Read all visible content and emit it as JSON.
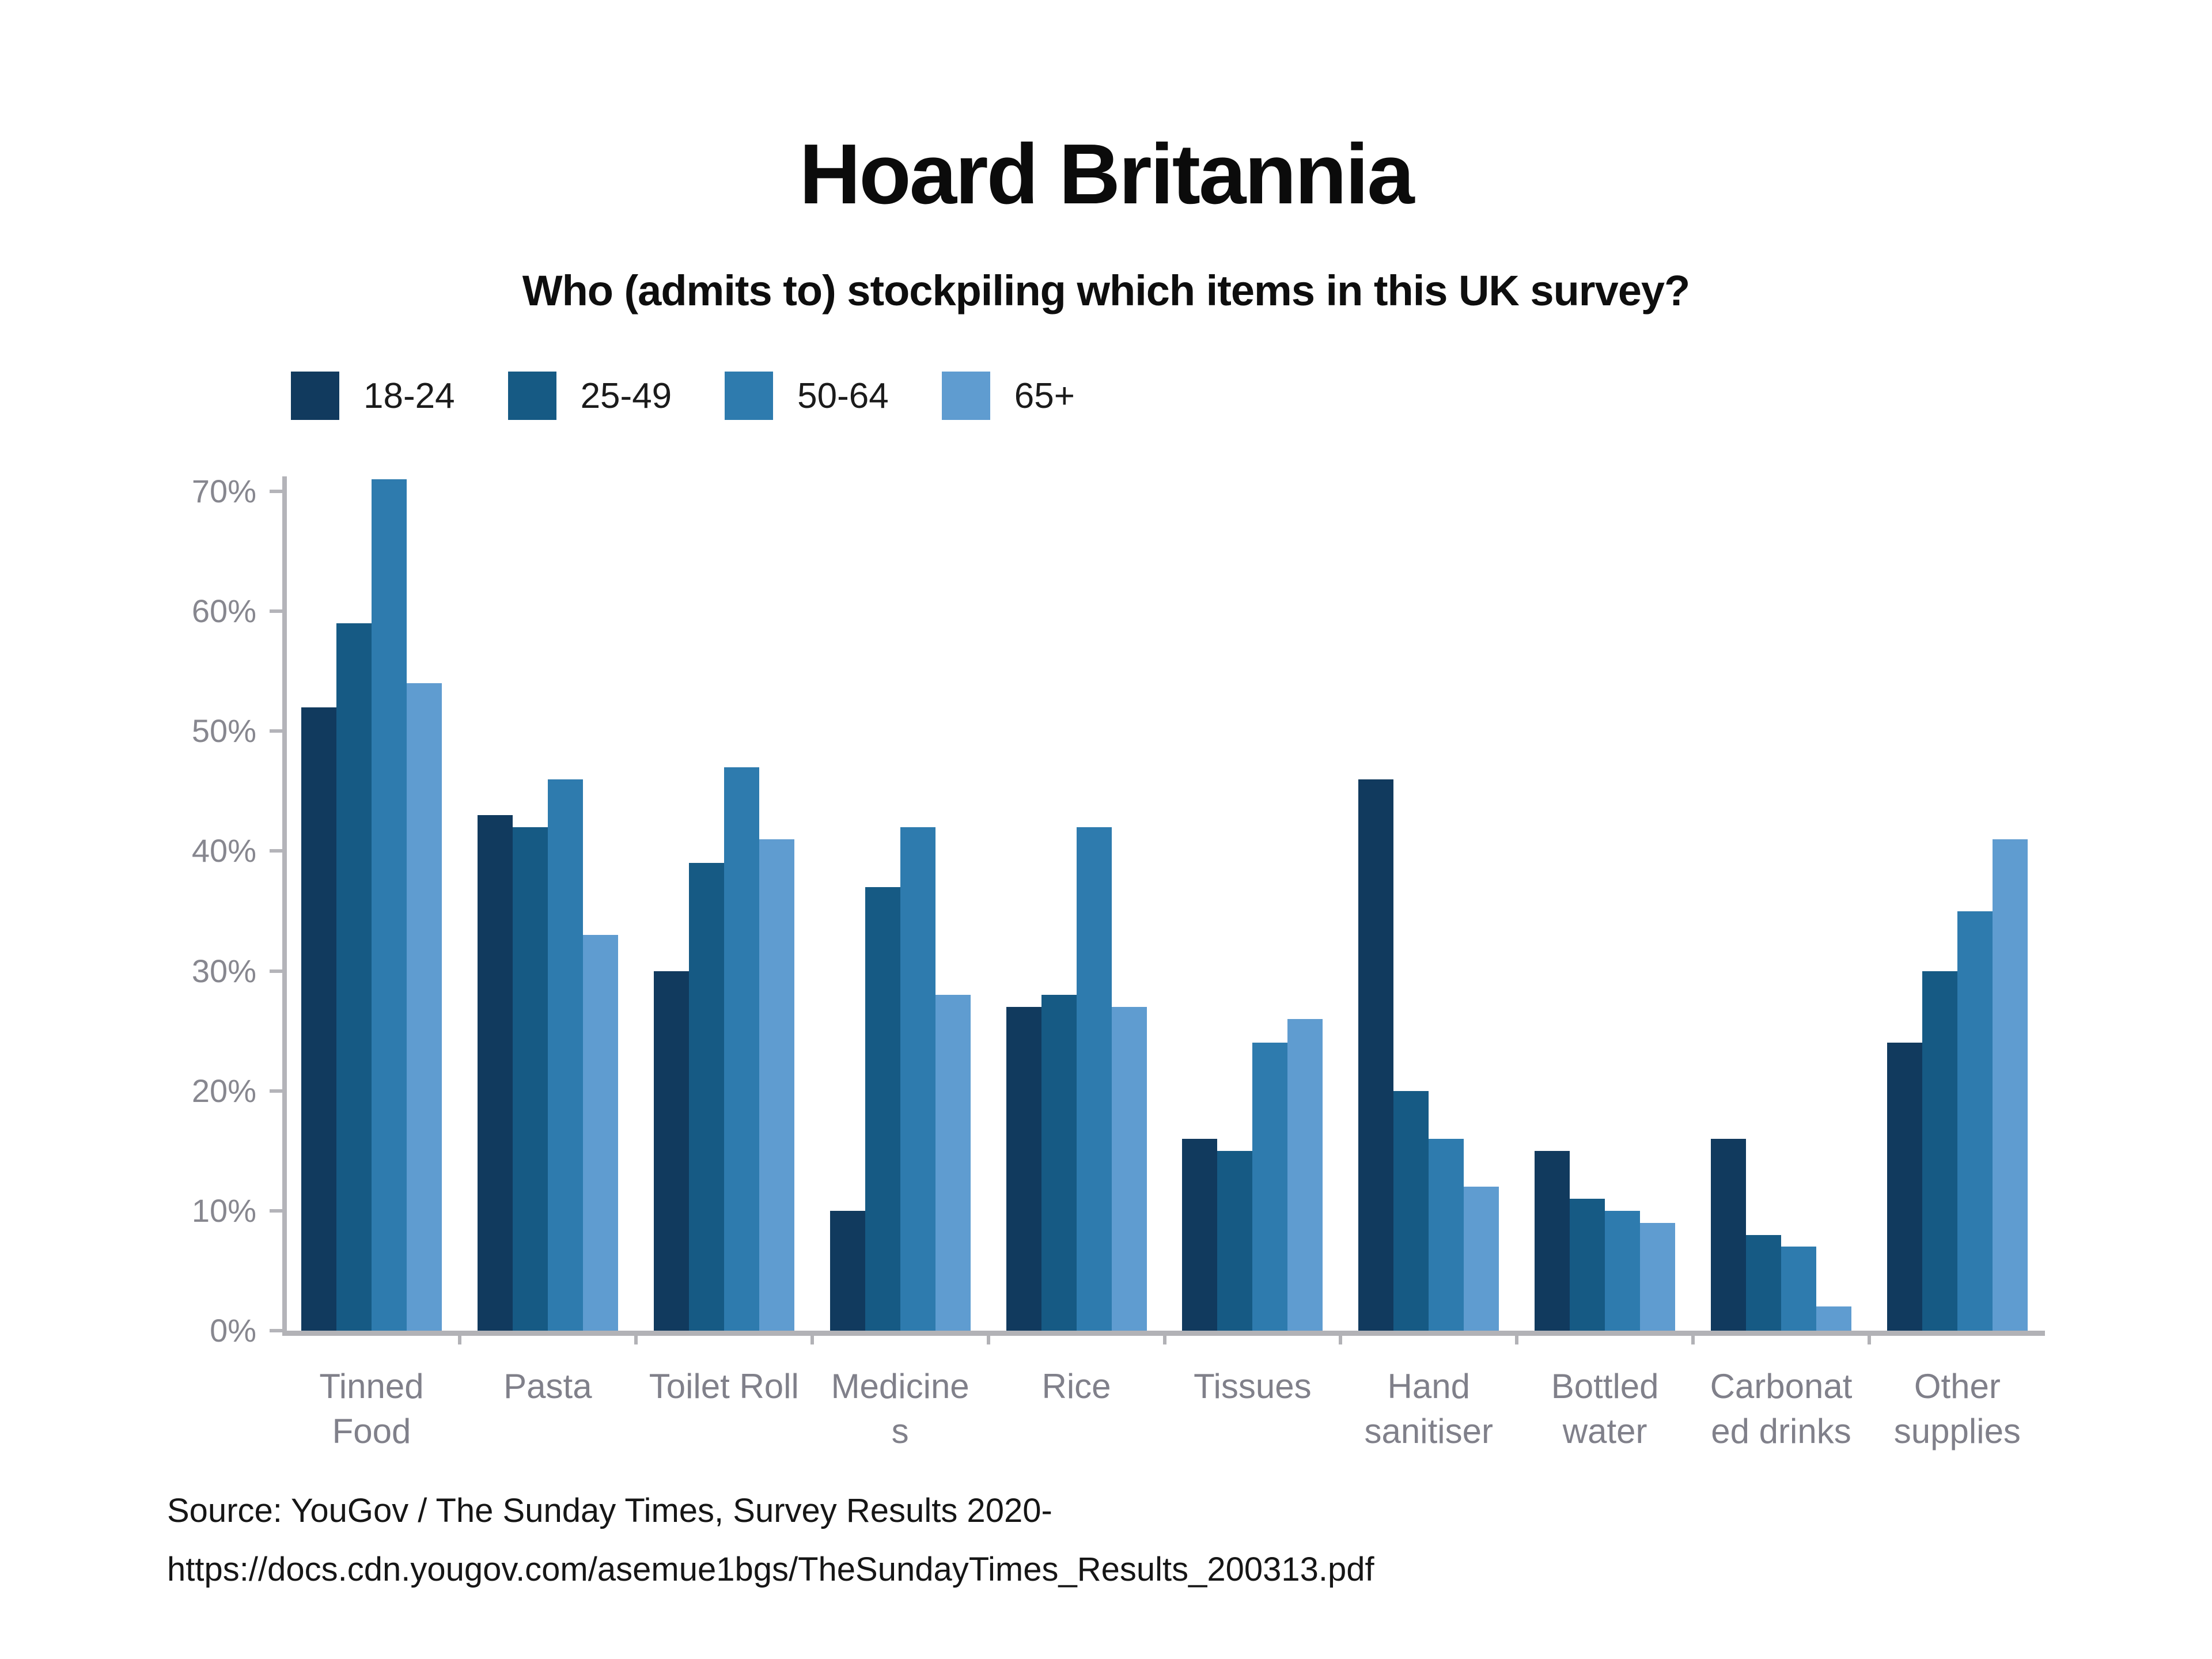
{
  "title": "Hoard Britannia",
  "subtitle": "Who (admits to) stockpiling which items in this UK survey?",
  "source": {
    "line1": "Source: YouGov / The Sunday Times, Survey Results 2020-",
    "line2": "https://docs.cdn.yougov.com/asemue1bgs/TheSundayTimes_Results_200313.pdf"
  },
  "colors": {
    "axis": "#b4b4b9",
    "baseline": "#b2b2b6",
    "tick_label": "#87878f",
    "category_label": "#80808a",
    "text": "#0e0e0e"
  },
  "chart_data": {
    "type": "bar",
    "title": "Hoard Britannia",
    "subtitle": "Who (admits to) stockpiling which items in this UK survey?",
    "categories": [
      "Tinned Food",
      "Pasta",
      "Toilet Roll",
      "Medicines",
      "Rice",
      "Tissues",
      "Hand sanitiser",
      "Bottled water",
      "Carbonated drinks",
      "Other supplies"
    ],
    "category_display_lines": [
      [
        "Tinned",
        "Food"
      ],
      [
        "Pasta"
      ],
      [
        "Toilet Roll"
      ],
      [
        "Medicine",
        "s"
      ],
      [
        "Rice"
      ],
      [
        "Tissues"
      ],
      [
        "Hand",
        "sanitiser"
      ],
      [
        "Bottled",
        "water"
      ],
      [
        "Carbonat",
        "ed drinks"
      ],
      [
        "Other",
        "supplies"
      ]
    ],
    "series": [
      {
        "name": "18-24",
        "color": "#113a5e",
        "values": [
          52,
          43,
          30,
          10,
          27,
          16,
          46,
          15,
          16,
          24
        ]
      },
      {
        "name": "25-49",
        "color": "#165a84",
        "values": [
          59,
          42,
          39,
          37,
          28,
          15,
          20,
          11,
          8,
          30
        ]
      },
      {
        "name": "50-64",
        "color": "#2e7bae",
        "values": [
          71,
          46,
          47,
          42,
          42,
          24,
          16,
          10,
          7,
          35
        ]
      },
      {
        "name": "65+",
        "color": "#5f9cd0",
        "values": [
          54,
          33,
          41,
          28,
          27,
          26,
          12,
          9,
          2,
          41
        ]
      }
    ],
    "unit": "%",
    "ylim": [
      0,
      70
    ],
    "y_tick_step": 10,
    "y_ticks": [
      "0%",
      "10%",
      "20%",
      "30%",
      "40%",
      "50%",
      "60%",
      "70%"
    ],
    "xlabel": "",
    "ylabel": "",
    "grid": false,
    "legend_position": "top-left"
  }
}
